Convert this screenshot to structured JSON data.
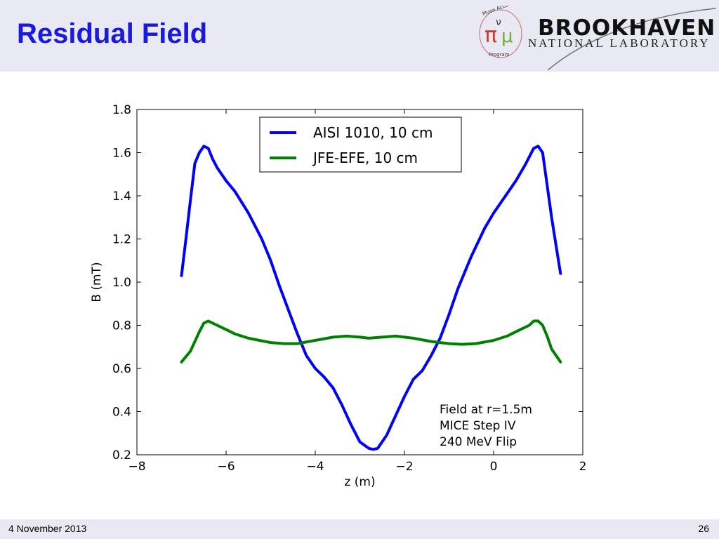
{
  "slide": {
    "title": "Residual Field",
    "footer_date": "4 November 2013",
    "page_number": "26"
  },
  "logos": {
    "map_logo_text": "Muon Accelerator Program",
    "bnl_name": "BROOKHAVEN",
    "bnl_subtitle": "NATIONAL LABORATORY"
  },
  "chart_data": {
    "type": "line",
    "xlabel": "z (m)",
    "ylabel": "B (mT)",
    "xlim": [
      -8,
      2
    ],
    "ylim": [
      0.2,
      1.8
    ],
    "xticks": [
      -8,
      -6,
      -4,
      -2,
      0,
      2
    ],
    "yticks": [
      0.2,
      0.4,
      0.6,
      0.8,
      1.0,
      1.2,
      1.4,
      1.6,
      1.8
    ],
    "grid": false,
    "legend_position": "top-center",
    "annotation": [
      "Field at r=1.5m",
      "MICE Step IV",
      "240 MeV Flip"
    ],
    "series": [
      {
        "name": "AISI 1010, 10 cm",
        "color": "#0000ff",
        "x": [
          -7.0,
          -6.9,
          -6.8,
          -6.7,
          -6.6,
          -6.5,
          -6.4,
          -6.3,
          -6.2,
          -6.0,
          -5.8,
          -5.5,
          -5.2,
          -5.0,
          -4.8,
          -4.6,
          -4.4,
          -4.2,
          -4.0,
          -3.8,
          -3.6,
          -3.4,
          -3.2,
          -3.0,
          -2.8,
          -2.7,
          -2.6,
          -2.4,
          -2.2,
          -2.0,
          -1.8,
          -1.6,
          -1.4,
          -1.2,
          -1.0,
          -0.8,
          -0.5,
          -0.2,
          0.0,
          0.2,
          0.5,
          0.7,
          0.8,
          0.9,
          1.0,
          1.1,
          1.2,
          1.3,
          1.4,
          1.5
        ],
        "y": [
          1.03,
          1.2,
          1.38,
          1.55,
          1.6,
          1.63,
          1.62,
          1.57,
          1.53,
          1.47,
          1.42,
          1.32,
          1.2,
          1.1,
          0.98,
          0.87,
          0.76,
          0.66,
          0.6,
          0.56,
          0.51,
          0.43,
          0.34,
          0.26,
          0.23,
          0.225,
          0.23,
          0.29,
          0.38,
          0.47,
          0.55,
          0.59,
          0.66,
          0.74,
          0.85,
          0.97,
          1.12,
          1.25,
          1.32,
          1.38,
          1.47,
          1.54,
          1.58,
          1.62,
          1.63,
          1.6,
          1.45,
          1.3,
          1.17,
          1.04
        ]
      },
      {
        "name": "JFE-EFE, 10 cm",
        "color": "#008000",
        "x": [
          -7.0,
          -6.8,
          -6.6,
          -6.5,
          -6.4,
          -6.2,
          -6.0,
          -5.8,
          -5.5,
          -5.0,
          -4.7,
          -4.4,
          -4.0,
          -3.6,
          -3.3,
          -3.0,
          -2.8,
          -2.5,
          -2.2,
          -1.8,
          -1.4,
          -1.0,
          -0.7,
          -0.4,
          0.0,
          0.3,
          0.6,
          0.8,
          0.9,
          1.0,
          1.1,
          1.2,
          1.3,
          1.5
        ],
        "y": [
          0.63,
          0.68,
          0.77,
          0.81,
          0.82,
          0.8,
          0.78,
          0.76,
          0.74,
          0.72,
          0.715,
          0.715,
          0.73,
          0.745,
          0.75,
          0.745,
          0.74,
          0.745,
          0.75,
          0.74,
          0.725,
          0.715,
          0.712,
          0.715,
          0.73,
          0.75,
          0.78,
          0.8,
          0.82,
          0.82,
          0.8,
          0.75,
          0.69,
          0.63
        ]
      }
    ]
  }
}
